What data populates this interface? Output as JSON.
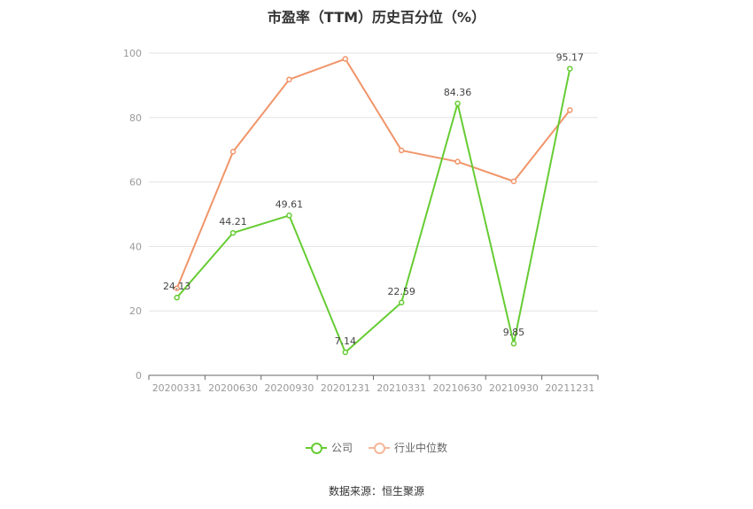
{
  "chart_data": {
    "type": "line",
    "title": "市盈率（TTM）历史百分位（%）",
    "categories": [
      "20200331",
      "20200630",
      "20200930",
      "20201231",
      "20210331",
      "20210630",
      "20210930",
      "20211231"
    ],
    "ylim": [
      0,
      100
    ],
    "yticks": [
      "0",
      "20",
      "40",
      "60",
      "80",
      "100"
    ],
    "grid": true,
    "legend_position": "bottom",
    "series": [
      {
        "name": "公司",
        "color": "#66cc33",
        "values": [
          24.13,
          44.21,
          49.61,
          7.14,
          22.59,
          84.36,
          9.85,
          95.17
        ],
        "labels": [
          "24.13",
          "44.21",
          "49.61",
          "7.14",
          "22.59",
          "84.36",
          "9.85",
          "95.17"
        ]
      },
      {
        "name": "行业中位数",
        "color": "#f0956a",
        "values": [
          27,
          69.4,
          91.8,
          98.2,
          69.8,
          66.3,
          60.2,
          82.3
        ]
      }
    ]
  },
  "legend": {
    "company": "公司",
    "industry": "行业中位数"
  },
  "source": "数据来源：恒生聚源"
}
